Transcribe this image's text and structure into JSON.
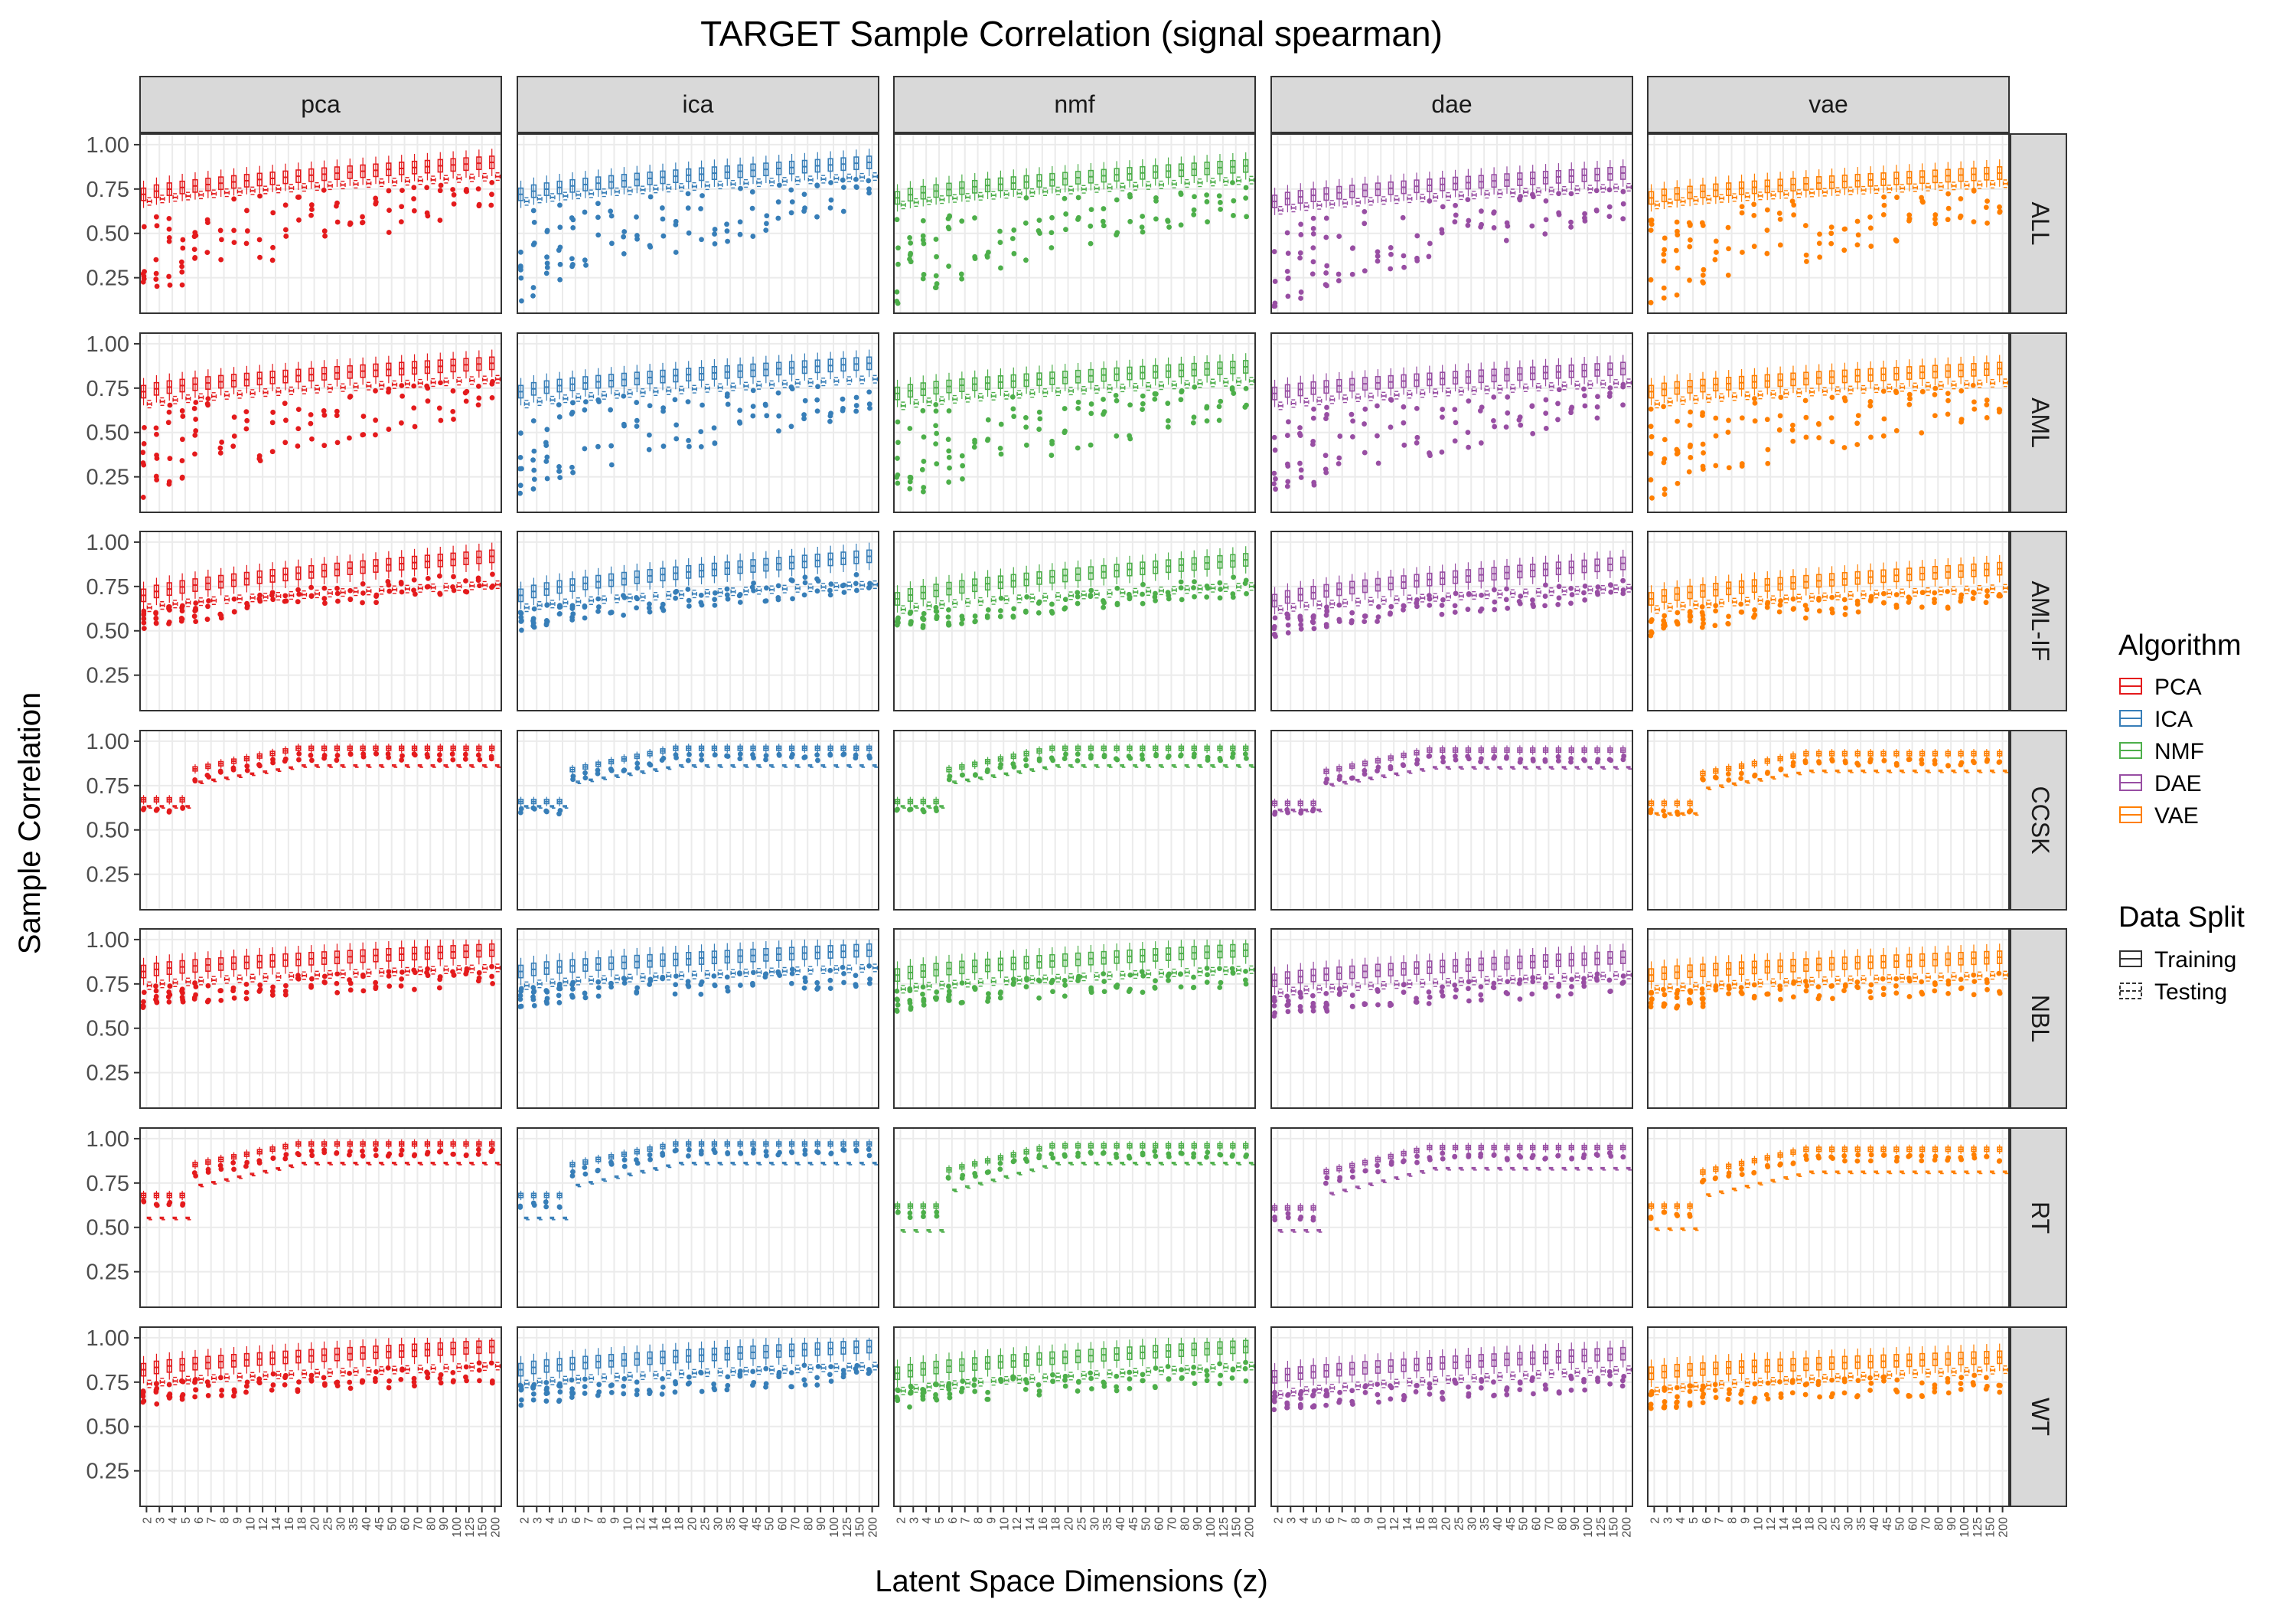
{
  "chart_data": {
    "type": "box",
    "title": "TARGET Sample Correlation (signal spearman)",
    "xlabel": "Latent Space Dimensions (z)",
    "ylabel": "Sample Correlation",
    "ylim": [
      0.05,
      1.06
    ],
    "yticks": [
      "0.25",
      "0.50",
      "0.75",
      "1.00"
    ],
    "grid": true,
    "legend_position": "right",
    "x_categories": [
      "2",
      "3",
      "4",
      "5",
      "6",
      "7",
      "8",
      "9",
      "10",
      "12",
      "14",
      "16",
      "18",
      "20",
      "25",
      "30",
      "35",
      "40",
      "45",
      "50",
      "60",
      "70",
      "80",
      "90",
      "100",
      "125",
      "150",
      "200"
    ],
    "facet_columns": [
      "pca",
      "ica",
      "nmf",
      "dae",
      "vae"
    ],
    "facet_rows": [
      "ALL",
      "AML",
      "AML-IF",
      "CCSK",
      "NBL",
      "RT",
      "WT"
    ],
    "algorithm_legend": {
      "title": "Algorithm",
      "entries": [
        {
          "label": "PCA",
          "color": "#e41a1c"
        },
        {
          "label": "ICA",
          "color": "#377eb8"
        },
        {
          "label": "NMF",
          "color": "#4daf4a"
        },
        {
          "label": "DAE",
          "color": "#984ea3"
        },
        {
          "label": "VAE",
          "color": "#ff7f00"
        }
      ]
    },
    "split_legend": {
      "title": "Data Split",
      "entries": [
        {
          "label": "Training",
          "linetype": "solid"
        },
        {
          "label": "Testing",
          "linetype": "dashed"
        }
      ]
    },
    "approx_median_training": {
      "ALL": {
        "pca": [
          0.72,
          0.9
        ],
        "ica": [
          0.72,
          0.9
        ],
        "nmf": [
          0.7,
          0.88
        ],
        "dae": [
          0.68,
          0.84
        ],
        "vae": [
          0.7,
          0.84
        ]
      },
      "AML": {
        "pca": [
          0.73,
          0.89
        ],
        "ica": [
          0.73,
          0.89
        ],
        "nmf": [
          0.72,
          0.87
        ],
        "dae": [
          0.72,
          0.86
        ],
        "vae": [
          0.73,
          0.86
        ]
      },
      "AML-IF": {
        "pca": [
          0.7,
          0.92
        ],
        "ica": [
          0.7,
          0.92
        ],
        "nmf": [
          0.68,
          0.9
        ],
        "dae": [
          0.67,
          0.88
        ],
        "vae": [
          0.68,
          0.85
        ]
      },
      "CCSK": {
        "pca": [
          0.67,
          0.96
        ],
        "ica": [
          0.66,
          0.96
        ],
        "nmf": [
          0.66,
          0.96
        ],
        "dae": [
          0.65,
          0.95
        ],
        "vae": [
          0.65,
          0.93
        ]
      },
      "NBL": {
        "pca": [
          0.82,
          0.94
        ],
        "ica": [
          0.82,
          0.94
        ],
        "nmf": [
          0.8,
          0.94
        ],
        "dae": [
          0.77,
          0.9
        ],
        "vae": [
          0.8,
          0.9
        ]
      },
      "RT": {
        "pca": [
          0.68,
          0.97
        ],
        "ica": [
          0.68,
          0.97
        ],
        "nmf": [
          0.62,
          0.96
        ],
        "dae": [
          0.61,
          0.95
        ],
        "vae": [
          0.62,
          0.94
        ]
      },
      "WT": {
        "pca": [
          0.82,
          0.95
        ],
        "ica": [
          0.82,
          0.95
        ],
        "nmf": [
          0.8,
          0.95
        ],
        "dae": [
          0.78,
          0.91
        ],
        "vae": [
          0.8,
          0.89
        ]
      }
    },
    "approx_median_testing": {
      "ALL": {
        "pca": [
          0.68,
          0.82
        ],
        "ica": [
          0.68,
          0.82
        ],
        "nmf": [
          0.66,
          0.8
        ],
        "dae": [
          0.63,
          0.76
        ],
        "vae": [
          0.66,
          0.78
        ]
      },
      "AML": {
        "pca": [
          0.66,
          0.8
        ],
        "ica": [
          0.66,
          0.8
        ],
        "nmf": [
          0.65,
          0.79
        ],
        "dae": [
          0.65,
          0.78
        ],
        "vae": [
          0.66,
          0.78
        ]
      },
      "AML-IF": {
        "pca": [
          0.63,
          0.76
        ],
        "ica": [
          0.63,
          0.76
        ],
        "nmf": [
          0.62,
          0.75
        ],
        "dae": [
          0.62,
          0.74
        ],
        "vae": [
          0.62,
          0.74
        ]
      },
      "CCSK": {
        "pca": [
          0.63,
          0.86
        ],
        "ica": [
          0.63,
          0.86
        ],
        "nmf": [
          0.63,
          0.86
        ],
        "dae": [
          0.61,
          0.85
        ],
        "vae": [
          0.59,
          0.83
        ]
      },
      "NBL": {
        "pca": [
          0.74,
          0.84
        ],
        "ica": [
          0.74,
          0.84
        ],
        "nmf": [
          0.72,
          0.83
        ],
        "dae": [
          0.7,
          0.8
        ],
        "vae": [
          0.72,
          0.8
        ]
      },
      "RT": {
        "pca": [
          0.55,
          0.86
        ],
        "ica": [
          0.55,
          0.86
        ],
        "nmf": [
          0.48,
          0.86
        ],
        "dae": [
          0.48,
          0.83
        ],
        "vae": [
          0.49,
          0.81
        ]
      },
      "WT": {
        "pca": [
          0.74,
          0.84
        ],
        "ica": [
          0.74,
          0.84
        ],
        "nmf": [
          0.7,
          0.84
        ],
        "dae": [
          0.68,
          0.82
        ],
        "vae": [
          0.7,
          0.82
        ]
      }
    }
  }
}
